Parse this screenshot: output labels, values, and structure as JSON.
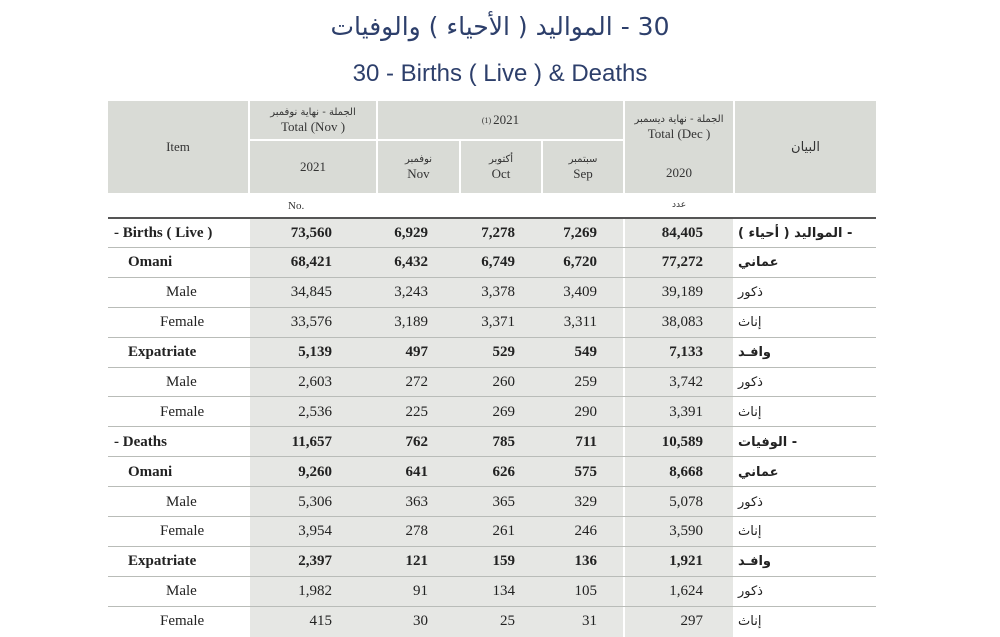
{
  "title_ar": "30 - المواليد ( الأحياء ) والوفيات",
  "title_en": "30 - Births ( Live ) & Deaths",
  "header": {
    "item": "Item",
    "total_nov_ar": "الجملة - نهاية نوفمبر",
    "total_nov_en": "Total (Nov )",
    "total_nov_year": "2021",
    "year_2021": "2021",
    "footnote": "(1)",
    "nov_ar": "نوفمبر",
    "nov_en": "Nov",
    "oct_ar": "أكتوبر",
    "oct_en": "Oct",
    "sep_ar": "سبتمبر",
    "sep_en": "Sep",
    "total_dec_ar": "الجملة - نهاية ديسمبر",
    "total_dec_en": "Total (Dec )",
    "total_dec_year": "2020",
    "bayan": "البيان"
  },
  "units": {
    "en": "No.",
    "ar": "عدد"
  },
  "rows": [
    {
      "en": "- Births ( Live )",
      "ar": "- المواليد ( أحياء )",
      "total": "73,560",
      "nov": "6,929",
      "oct": "7,278",
      "sep": "7,269",
      "dec": "84,405"
    },
    {
      "en": "Omani",
      "ar": "عماني",
      "total": "68,421",
      "nov": "6,432",
      "oct": "6,749",
      "sep": "6,720",
      "dec": "77,272"
    },
    {
      "en": "Male",
      "ar": "ذكور",
      "total": "34,845",
      "nov": "3,243",
      "oct": "3,378",
      "sep": "3,409",
      "dec": "39,189"
    },
    {
      "en": "Female",
      "ar": "إناث",
      "total": "33,576",
      "nov": "3,189",
      "oct": "3,371",
      "sep": "3,311",
      "dec": "38,083"
    },
    {
      "en": "Expatriate",
      "ar": "وافـد",
      "total": "5,139",
      "nov": "497",
      "oct": "529",
      "sep": "549",
      "dec": "7,133"
    },
    {
      "en": "Male",
      "ar": "ذكور",
      "total": "2,603",
      "nov": "272",
      "oct": "260",
      "sep": "259",
      "dec": "3,742"
    },
    {
      "en": "Female",
      "ar": "إناث",
      "total": "2,536",
      "nov": "225",
      "oct": "269",
      "sep": "290",
      "dec": "3,391"
    },
    {
      "en": "- Deaths",
      "ar": "- الوفيات",
      "total": "11,657",
      "nov": "762",
      "oct": "785",
      "sep": "711",
      "dec": "10,589"
    },
    {
      "en": "Omani",
      "ar": "عماني",
      "total": "9,260",
      "nov": "641",
      "oct": "626",
      "sep": "575",
      "dec": "8,668"
    },
    {
      "en": "Male",
      "ar": "ذكور",
      "total": "5,306",
      "nov": "363",
      "oct": "365",
      "sep": "329",
      "dec": "5,078"
    },
    {
      "en": "Female",
      "ar": "إناث",
      "total": "3,954",
      "nov": "278",
      "oct": "261",
      "sep": "246",
      "dec": "3,590"
    },
    {
      "en": "Expatriate",
      "ar": "وافـد",
      "total": "2,397",
      "nov": "121",
      "oct": "159",
      "sep": "136",
      "dec": "1,921"
    },
    {
      "en": "Male",
      "ar": "ذكور",
      "total": "1,982",
      "nov": "91",
      "oct": "134",
      "sep": "105",
      "dec": "1,624"
    },
    {
      "en": "Female",
      "ar": "إناث",
      "total": "415",
      "nov": "30",
      "oct": "25",
      "sep": "31",
      "dec": "297"
    }
  ]
}
